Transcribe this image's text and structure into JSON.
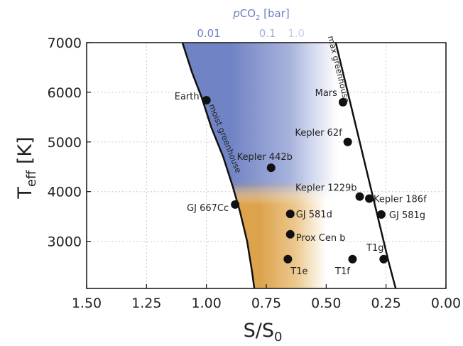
{
  "chart_data": {
    "type": "scatter",
    "top_axis": {
      "title": "pCO",
      "title_subscript": "2",
      "title_unit": " [bar]",
      "ticks": [
        {
          "label": "0.01",
          "x": 0.99,
          "color": "#6d7fc1"
        },
        {
          "label": "0.1",
          "x": 0.745,
          "color": "#a3afd9"
        },
        {
          "label": "1.0",
          "x": 0.625,
          "color": "#c9d0ea"
        }
      ]
    },
    "xlabel": "S/S",
    "xlabel_subscript": "0",
    "ylabel": "T",
    "ylabel_subscript": "eff",
    "ylabel_unit": " [K]",
    "xlim": [
      1.5,
      0.0
    ],
    "ylim": [
      2050,
      7000
    ],
    "x_reversed": true,
    "x_ticks": [
      {
        "value": 1.5,
        "label": "1.50"
      },
      {
        "value": 1.25,
        "label": "1.25"
      },
      {
        "value": 1.0,
        "label": "1.00"
      },
      {
        "value": 0.75,
        "label": "0.75"
      },
      {
        "value": 0.5,
        "label": "0.50"
      },
      {
        "value": 0.25,
        "label": "0.25"
      },
      {
        "value": 0.0,
        "label": "0.00"
      }
    ],
    "y_ticks": [
      {
        "value": 3000,
        "label": "3000"
      },
      {
        "value": 4000,
        "label": "4000"
      },
      {
        "value": 5000,
        "label": "5000"
      },
      {
        "value": 6000,
        "label": "6000"
      },
      {
        "value": 7000,
        "label": "7000"
      }
    ],
    "grid": true,
    "colors": {
      "co2_blue": "#7083c4",
      "cold_orange": "#dca24c",
      "points": "#111111",
      "curves": "#111111",
      "grid": "#c8c8c8"
    },
    "curves": [
      {
        "name": "moist greenhouse",
        "points": [
          [
            1.1,
            7000
          ],
          [
            1.06,
            6400
          ],
          [
            1.02,
            5900
          ],
          [
            0.98,
            5300
          ],
          [
            0.93,
            4700
          ],
          [
            0.89,
            4100
          ],
          [
            0.86,
            3600
          ],
          [
            0.83,
            3000
          ],
          [
            0.81,
            2400
          ],
          [
            0.8,
            2050
          ]
        ]
      },
      {
        "name": "max greenhouse",
        "points": [
          [
            0.46,
            7000
          ],
          [
            0.43,
            6400
          ],
          [
            0.4,
            5800
          ],
          [
            0.37,
            5200
          ],
          [
            0.34,
            4600
          ],
          [
            0.31,
            4000
          ],
          [
            0.28,
            3400
          ],
          [
            0.24,
            2600
          ],
          [
            0.21,
            2050
          ]
        ]
      }
    ],
    "series": [
      {
        "points": [
          {
            "name": "Earth",
            "x": 1.0,
            "y": 5840
          },
          {
            "name": "Mars",
            "x": 0.43,
            "y": 5800
          },
          {
            "name": "Kepler 62f",
            "x": 0.41,
            "y": 5000
          },
          {
            "name": "Kepler 442b",
            "x": 0.73,
            "y": 4480
          },
          {
            "name": "Kepler 1229b",
            "x": 0.36,
            "y": 3900
          },
          {
            "name": "Kepler 186f",
            "x": 0.32,
            "y": 3860
          },
          {
            "name": "GJ 667Cc",
            "x": 0.88,
            "y": 3740
          },
          {
            "name": "GJ 581d",
            "x": 0.65,
            "y": 3550
          },
          {
            "name": "GJ 581g",
            "x": 0.27,
            "y": 3540
          },
          {
            "name": "Prox Cen b",
            "x": 0.65,
            "y": 3140
          },
          {
            "name": "T1e",
            "x": 0.66,
            "y": 2640
          },
          {
            "name": "T1f",
            "x": 0.39,
            "y": 2640
          },
          {
            "name": "T1g",
            "x": 0.26,
            "y": 2640
          }
        ]
      }
    ]
  }
}
